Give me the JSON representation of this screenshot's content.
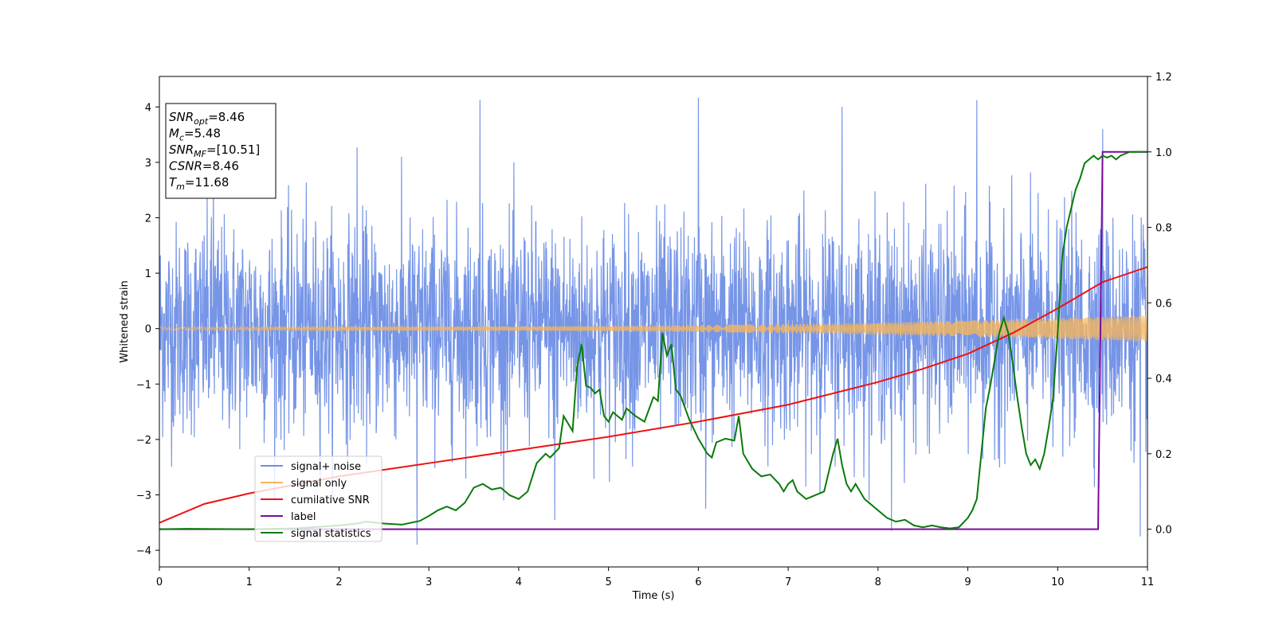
{
  "chart_data": {
    "type": "line",
    "xlabel": "Time (s)",
    "ylabel": "Whitened strain",
    "xlim": [
      0,
      11
    ],
    "ylim": [
      -4.3,
      4.55
    ],
    "y2lim": [
      -0.1,
      1.2
    ],
    "xticks": [
      0,
      1,
      2,
      3,
      4,
      5,
      6,
      7,
      8,
      9,
      10,
      11
    ],
    "yticks": [
      -4,
      -3,
      -2,
      -1,
      0,
      1,
      2,
      3,
      4
    ],
    "y2ticks": [
      0.0,
      0.2,
      0.4,
      0.6,
      0.8,
      1.0,
      1.2
    ],
    "grid": false,
    "legend_position": "lower-left",
    "series": [
      {
        "name": "signal+ noise",
        "axis": "left",
        "color": "#6f8fe6",
        "kind": "noise",
        "std": 0.95,
        "spikes": [
          [
            0.6,
            2.8
          ],
          [
            2.2,
            3.27
          ],
          [
            2.87,
            -3.9
          ],
          [
            3.57,
            4.13
          ],
          [
            4.4,
            -3.45
          ],
          [
            6.0,
            4.17
          ],
          [
            6.08,
            -3.25
          ],
          [
            7.6,
            4.0
          ],
          [
            8.15,
            -3.65
          ],
          [
            9.1,
            4.12
          ],
          [
            10.5,
            3.6
          ],
          [
            10.92,
            -3.75
          ]
        ]
      },
      {
        "name": "signal only",
        "axis": "left",
        "color": "#f5b55c",
        "kind": "chirp",
        "amp_start": 0.03,
        "amp_end": 0.24
      },
      {
        "name": "cumilative SNR",
        "axis": "right",
        "color": "#ee1111",
        "x": [
          0,
          0.5,
          1,
          2,
          3,
          4,
          5,
          6,
          7,
          8,
          8.5,
          9,
          9.5,
          10,
          10.5,
          11
        ],
        "y": [
          0.017,
          0.067,
          0.095,
          0.14,
          0.175,
          0.21,
          0.245,
          0.285,
          0.33,
          0.39,
          0.425,
          0.465,
          0.52,
          0.585,
          0.655,
          0.695
        ]
      },
      {
        "name": "label",
        "axis": "right",
        "color": "#7b0a9c",
        "x": [
          0,
          10.45,
          10.5,
          11
        ],
        "y": [
          0,
          0,
          1,
          1
        ]
      },
      {
        "name": "signal statistics",
        "axis": "right",
        "color": "#0b7a0b",
        "x": [
          0,
          0.3,
          1,
          1.5,
          2,
          2.2,
          2.3,
          2.5,
          2.7,
          2.9,
          3.0,
          3.1,
          3.2,
          3.3,
          3.4,
          3.5,
          3.6,
          3.7,
          3.8,
          3.9,
          4.0,
          4.1,
          4.2,
          4.3,
          4.35,
          4.45,
          4.5,
          4.6,
          4.65,
          4.7,
          4.75,
          4.8,
          4.85,
          4.9,
          4.95,
          5.0,
          5.05,
          5.1,
          5.15,
          5.2,
          5.3,
          5.4,
          5.5,
          5.55,
          5.6,
          5.65,
          5.7,
          5.75,
          5.8,
          5.9,
          6.0,
          6.1,
          6.15,
          6.2,
          6.3,
          6.4,
          6.45,
          6.5,
          6.6,
          6.7,
          6.8,
          6.9,
          6.95,
          7.0,
          7.05,
          7.1,
          7.2,
          7.3,
          7.4,
          7.5,
          7.55,
          7.6,
          7.65,
          7.7,
          7.75,
          7.8,
          7.85,
          7.9,
          8.0,
          8.1,
          8.2,
          8.3,
          8.4,
          8.5,
          8.6,
          8.7,
          8.8,
          8.9,
          9.0,
          9.05,
          9.1,
          9.15,
          9.2,
          9.25,
          9.3,
          9.35,
          9.4,
          9.45,
          9.5,
          9.55,
          9.6,
          9.65,
          9.7,
          9.75,
          9.8,
          9.85,
          9.9,
          9.95,
          10.0,
          10.05,
          10.1,
          10.15,
          10.2,
          10.25,
          10.3,
          10.35,
          10.4,
          10.45,
          10.5,
          10.55,
          10.6,
          10.65,
          10.7,
          10.75,
          10.8,
          10.85,
          10.9,
          10.95,
          11.0
        ],
        "y": [
          0.0,
          0.001,
          0.0,
          0.002,
          0.01,
          0.015,
          0.02,
          0.015,
          0.012,
          0.022,
          0.035,
          0.05,
          0.06,
          0.05,
          0.07,
          0.11,
          0.12,
          0.105,
          0.11,
          0.09,
          0.08,
          0.1,
          0.175,
          0.2,
          0.19,
          0.215,
          0.3,
          0.26,
          0.43,
          0.49,
          0.38,
          0.375,
          0.36,
          0.37,
          0.3,
          0.285,
          0.31,
          0.3,
          0.29,
          0.32,
          0.3,
          0.285,
          0.35,
          0.34,
          0.52,
          0.46,
          0.49,
          0.37,
          0.355,
          0.29,
          0.24,
          0.2,
          0.19,
          0.23,
          0.24,
          0.235,
          0.3,
          0.2,
          0.16,
          0.14,
          0.145,
          0.12,
          0.1,
          0.12,
          0.13,
          0.1,
          0.08,
          0.09,
          0.1,
          0.2,
          0.24,
          0.17,
          0.12,
          0.1,
          0.12,
          0.1,
          0.08,
          0.07,
          0.05,
          0.03,
          0.02,
          0.025,
          0.01,
          0.005,
          0.01,
          0.005,
          0.002,
          0.005,
          0.03,
          0.05,
          0.08,
          0.2,
          0.32,
          0.38,
          0.45,
          0.52,
          0.56,
          0.52,
          0.44,
          0.35,
          0.27,
          0.2,
          0.17,
          0.185,
          0.16,
          0.2,
          0.27,
          0.35,
          0.52,
          0.72,
          0.8,
          0.85,
          0.9,
          0.93,
          0.97,
          0.98,
          0.99,
          0.98,
          0.99,
          0.985,
          0.99,
          0.98,
          0.99,
          0.995,
          1.0,
          1.0,
          1.0,
          1.0,
          1.0
        ]
      }
    ],
    "textbox": {
      "lines": [
        {
          "pre": "SNR",
          "sub": "opt",
          "post": "=8.46"
        },
        {
          "pre": "M",
          "sub": "c",
          "post": "=5.48"
        },
        {
          "pre": "SNR",
          "sub": "MF",
          "post": "=[10.51]"
        },
        {
          "pre": "CSNR",
          "sub": "",
          "post": "=8.46"
        },
        {
          "pre": "T",
          "sub": "m",
          "post": "=11.68"
        }
      ]
    }
  }
}
